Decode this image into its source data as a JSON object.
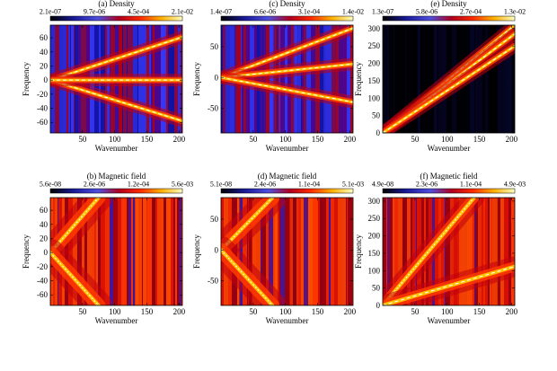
{
  "chart_data": [
    {
      "id": "a",
      "type": "heatmap",
      "title": "(a) Density",
      "xlabel": "Wavenumber",
      "ylabel": "Frequency",
      "xlim": [
        0,
        205
      ],
      "ylim": [
        -75,
        78
      ],
      "xticks": [
        50,
        100,
        150,
        200
      ],
      "yticks": [
        -60,
        -40,
        -20,
        0,
        20,
        40,
        60
      ],
      "colorbar_labels": [
        "2.1e-07",
        "9.7e-06",
        "4.5e-04",
        "2.1e-02"
      ],
      "ridges": [
        {
          "k0": 0,
          "w0": 0,
          "k1": 205,
          "w1": 61,
          "dashed": true
        },
        {
          "k0": 0,
          "w0": 0,
          "k1": 205,
          "w1": -58,
          "dashed": true
        },
        {
          "k0": 0,
          "w0": 0,
          "k1": 205,
          "w1": 0,
          "dashed": true
        }
      ],
      "halo_scale": 1.0,
      "background": "blue"
    },
    {
      "id": "b",
      "type": "heatmap",
      "title": "(b) Magnetic field",
      "xlabel": "Wavenumber",
      "ylabel": "Frequency",
      "xlim": [
        0,
        205
      ],
      "ylim": [
        -75,
        78
      ],
      "xticks": [
        50,
        100,
        150,
        200
      ],
      "yticks": [
        -60,
        -40,
        -20,
        0,
        20,
        40,
        60
      ],
      "colorbar_labels": [
        "5.6e-08",
        "2.6e-06",
        "1.2e-04",
        "5.6e-03"
      ],
      "ridges": [
        {
          "k0": 0,
          "w0": 0,
          "k1": 75,
          "w1": 78,
          "dashed": false
        },
        {
          "k0": 0,
          "w0": 0,
          "k1": 75,
          "w1": -75,
          "dashed": false
        }
      ],
      "halo_scale": 2.2,
      "background": "red"
    },
    {
      "id": "c",
      "type": "heatmap",
      "title": "(c) Density",
      "xlabel": "Wavenumber",
      "ylabel": "Frequency",
      "xlim": [
        0,
        205
      ],
      "ylim": [
        -90,
        85
      ],
      "xticks": [
        50,
        100,
        150,
        200
      ],
      "yticks": [
        -50,
        0,
        50
      ],
      "colorbar_labels": [
        "1.4e-07",
        "6.6e-06",
        "3.1e-04",
        "1.4e-02"
      ],
      "ridges": [
        {
          "k0": 0,
          "w0": 0,
          "k1": 205,
          "w1": 80,
          "dashed": true
        },
        {
          "k0": 0,
          "w0": 0,
          "k1": 205,
          "w1": 22,
          "dashed": true
        },
        {
          "k0": 0,
          "w0": 0,
          "k1": 205,
          "w1": -40,
          "dashed": true
        }
      ],
      "halo_scale": 1.0,
      "background": "blue"
    },
    {
      "id": "d",
      "type": "heatmap",
      "title": "(d) Magnetic field",
      "xlabel": "Wavenumber",
      "ylabel": "Frequency",
      "xlim": [
        0,
        205
      ],
      "ylim": [
        -90,
        85
      ],
      "xticks": [
        50,
        100,
        150,
        200
      ],
      "yticks": [
        -50,
        0,
        50
      ],
      "colorbar_labels": [
        "5.1e-08",
        "2.4e-06",
        "1.1e-04",
        "5.1e-03"
      ],
      "ridges": [
        {
          "k0": 0,
          "w0": 0,
          "k1": 80,
          "w1": 85,
          "dashed": false
        },
        {
          "k0": 0,
          "w0": 0,
          "k1": 80,
          "w1": -90,
          "dashed": false
        }
      ],
      "halo_scale": 2.2,
      "background": "red"
    },
    {
      "id": "e",
      "type": "heatmap",
      "title": "(e) Density",
      "xlabel": "Wavenumber",
      "ylabel": "Frequency",
      "xlim": [
        0,
        205
      ],
      "ylim": [
        0,
        310
      ],
      "xticks": [
        50,
        100,
        150,
        200
      ],
      "yticks": [
        0,
        50,
        100,
        150,
        200,
        250,
        300
      ],
      "colorbar_labels": [
        "1.3e-07",
        "5.8e-06",
        "2.7e-04",
        "1.3e-02"
      ],
      "ridges": [
        {
          "k0": 0,
          "w0": 0,
          "k1": 205,
          "w1": 310,
          "dashed": true
        },
        {
          "k0": 0,
          "w0": 0,
          "k1": 205,
          "w1": 285,
          "dashed": true
        },
        {
          "k0": 0,
          "w0": 0,
          "k1": 205,
          "w1": 250,
          "dashed": true
        }
      ],
      "halo_scale": 1.0,
      "background": "black"
    },
    {
      "id": "f",
      "type": "heatmap",
      "title": "(f) Magnetic field",
      "xlabel": "Wavenumber",
      "ylabel": "Frequency",
      "xlim": [
        0,
        205
      ],
      "ylim": [
        0,
        310
      ],
      "xticks": [
        50,
        100,
        150,
        200
      ],
      "yticks": [
        0,
        50,
        100,
        150,
        200,
        250,
        300
      ],
      "colorbar_labels": [
        "4.9e-08",
        "2.3e-06",
        "1.1e-04",
        "4.9e-03"
      ],
      "ridges": [
        {
          "k0": 0,
          "w0": 0,
          "k1": 142,
          "w1": 310,
          "dashed": false
        },
        {
          "k0": 0,
          "w0": 0,
          "k1": 205,
          "w1": 112,
          "dashed": true
        }
      ],
      "halo_scale": 1.6,
      "background": "red"
    }
  ]
}
